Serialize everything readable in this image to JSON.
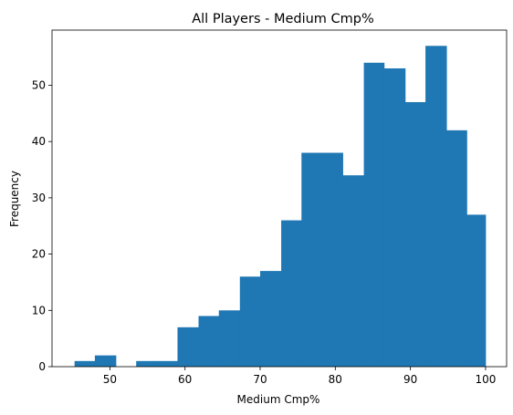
{
  "chart_data": {
    "type": "bar",
    "title": "All Players - Medium Cmp%",
    "xlabel": "Medium Cmp%",
    "ylabel": "Frequency",
    "xlim": [
      42.3,
      102.8
    ],
    "ylim": [
      0,
      59.8
    ],
    "xticks": [
      50,
      60,
      70,
      80,
      90,
      100
    ],
    "yticks": [
      0,
      10,
      20,
      30,
      40,
      50
    ],
    "bar_color": "#1f77b4",
    "grid": false,
    "bins": [
      {
        "x0": 45.3,
        "x1": 48.0,
        "count": 1
      },
      {
        "x0": 48.0,
        "x1": 50.8,
        "count": 2
      },
      {
        "x0": 50.8,
        "x1": 53.5,
        "count": 0
      },
      {
        "x0": 53.5,
        "x1": 56.3,
        "count": 1
      },
      {
        "x0": 56.3,
        "x1": 59.0,
        "count": 1
      },
      {
        "x0": 59.0,
        "x1": 61.8,
        "count": 7
      },
      {
        "x0": 61.8,
        "x1": 64.5,
        "count": 9
      },
      {
        "x0": 64.5,
        "x1": 67.3,
        "count": 10
      },
      {
        "x0": 67.3,
        "x1": 70.0,
        "count": 16
      },
      {
        "x0": 70.0,
        "x1": 72.8,
        "count": 17
      },
      {
        "x0": 72.8,
        "x1": 75.5,
        "count": 26
      },
      {
        "x0": 75.5,
        "x1": 78.3,
        "count": 38
      },
      {
        "x0": 78.3,
        "x1": 81.0,
        "count": 38
      },
      {
        "x0": 81.0,
        "x1": 83.8,
        "count": 34
      },
      {
        "x0": 83.8,
        "x1": 86.5,
        "count": 54
      },
      {
        "x0": 86.5,
        "x1": 89.3,
        "count": 53
      },
      {
        "x0": 89.3,
        "x1": 92.0,
        "count": 47
      },
      {
        "x0": 92.0,
        "x1": 94.8,
        "count": 57
      },
      {
        "x0": 94.8,
        "x1": 97.5,
        "count": 42
      },
      {
        "x0": 97.5,
        "x1": 100.0,
        "count": 27
      }
    ]
  }
}
